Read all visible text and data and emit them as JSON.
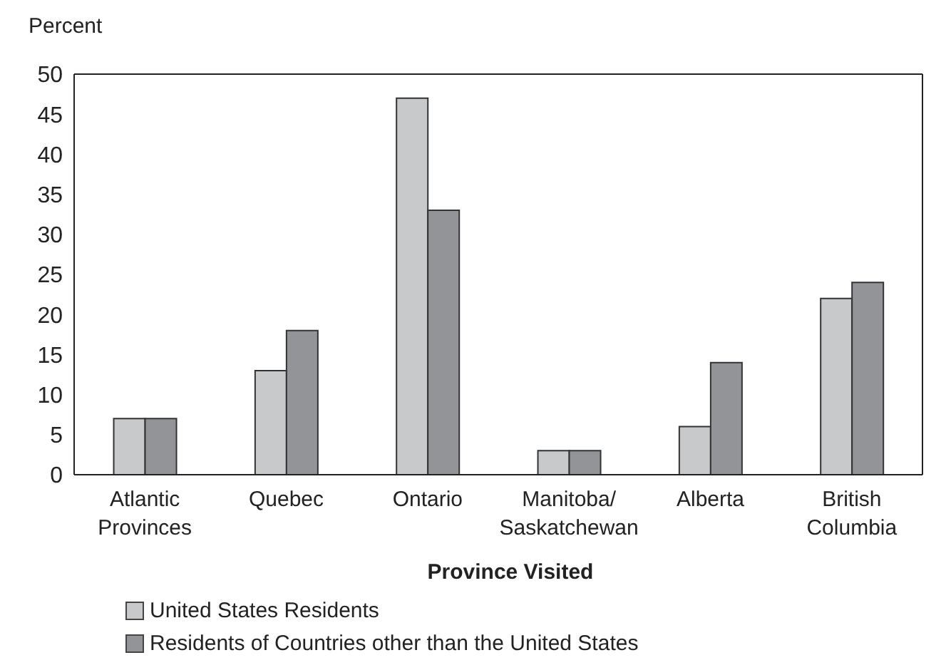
{
  "chart_data": {
    "type": "bar",
    "ylabel": "Percent",
    "xlabel": "Province Visited",
    "categories": [
      "Atlantic Provinces",
      "Quebec",
      "Ontario",
      "Manitoba/ Saskatchewan",
      "Alberta",
      "British Columbia"
    ],
    "series": [
      {
        "name": "United States Residents",
        "color": "#c8c9cb",
        "values": [
          7,
          13,
          47,
          3,
          6,
          22
        ]
      },
      {
        "name": "Residents of Countries other than the United States",
        "color": "#939498",
        "values": [
          7,
          18,
          33,
          3,
          14,
          24
        ]
      }
    ],
    "ylim": [
      0,
      50
    ],
    "yticks": [
      0,
      5,
      10,
      15,
      20,
      25,
      30,
      35,
      40,
      45,
      50
    ],
    "legend": "bottom"
  }
}
